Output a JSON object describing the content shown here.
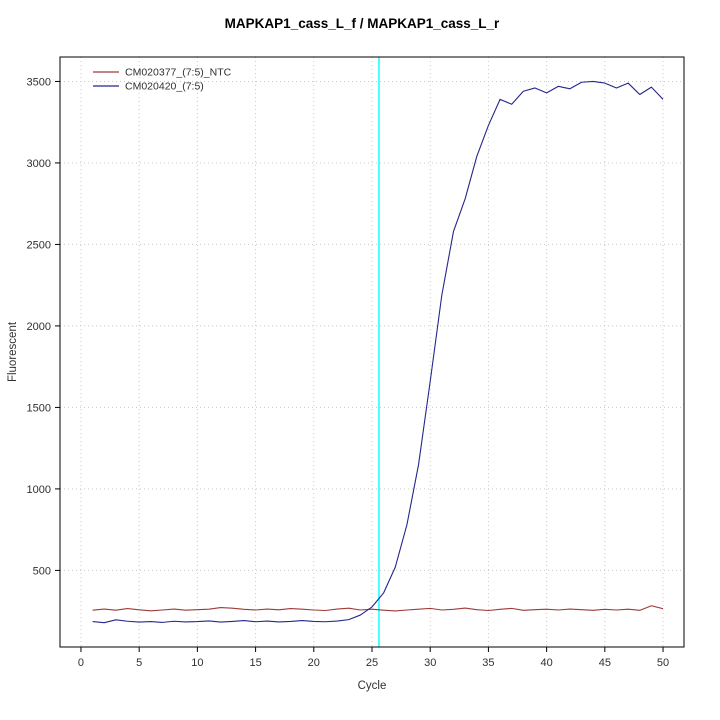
{
  "chart_data": {
    "type": "line",
    "title": "MAPKAP1_cass_L_f / MAPKAP1_cass_L_r",
    "xlabel": "Cycle",
    "ylabel": "Fluorescent",
    "xlim": [
      -1.8,
      51.8
    ],
    "ylim": [
      30,
      3650
    ],
    "x_ticks": [
      0,
      5,
      10,
      15,
      20,
      25,
      30,
      35,
      40,
      45,
      50
    ],
    "y_ticks": [
      500,
      1000,
      1500,
      2000,
      2500,
      3000,
      3500
    ],
    "grid": true,
    "grid_color": "#c9c9c9",
    "box_color": "#000000",
    "legend_position": "top-left",
    "threshold_line": {
      "x": 25.6,
      "color": "#00ffff"
    },
    "series": [
      {
        "name": "CM020377_(7:5)_NTC",
        "color": "#9e3a3a",
        "x_start": 1,
        "values": [
          256,
          263,
          256,
          266,
          258,
          252,
          257,
          263,
          256,
          259,
          262,
          272,
          268,
          261,
          257,
          263,
          258,
          266,
          262,
          257,
          254,
          263,
          268,
          257,
          262,
          256,
          251,
          257,
          262,
          267,
          257,
          261,
          269,
          259,
          254,
          261,
          267,
          255,
          259,
          262,
          257,
          263,
          259,
          255,
          261,
          257,
          262,
          255,
          283,
          265
        ]
      },
      {
        "name": "CM020420_(7:5)",
        "color": "#26268c",
        "x_start": 1,
        "values": [
          186,
          179,
          197,
          188,
          183,
          186,
          181,
          188,
          184,
          186,
          190,
          183,
          187,
          192,
          185,
          189,
          184,
          187,
          192,
          187,
          185,
          189,
          198,
          226,
          276,
          362,
          520,
          780,
          1150,
          1660,
          2190,
          2580,
          2780,
          3040,
          3230,
          3390,
          3360,
          3440,
          3460,
          3430,
          3470,
          3455,
          3495,
          3500,
          3490,
          3460,
          3490,
          3420,
          3465,
          3390
        ]
      }
    ]
  }
}
